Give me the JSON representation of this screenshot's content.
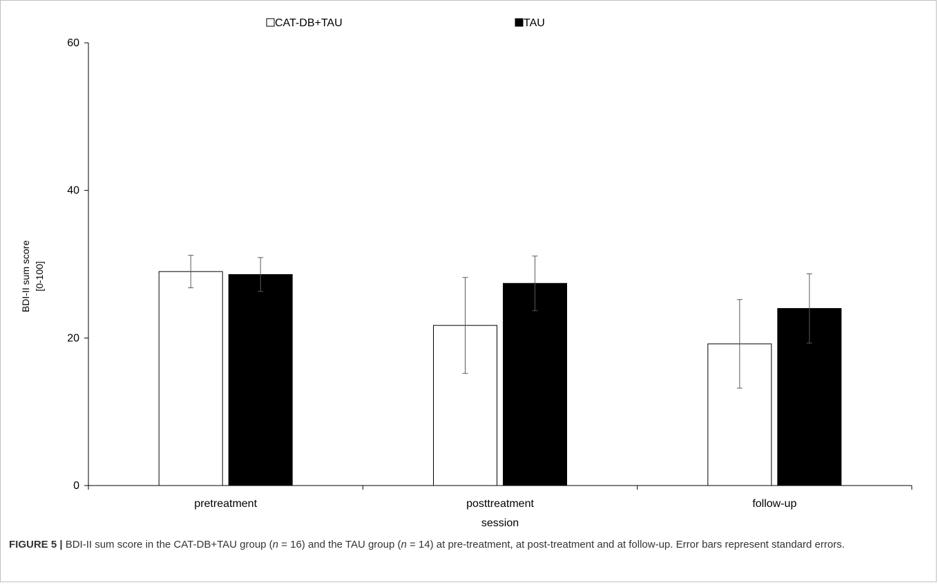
{
  "chart_data": {
    "type": "bar",
    "categories": [
      "pretreatment",
      "posttreatment",
      "follow-up"
    ],
    "series": [
      {
        "name": "CAT-DB+TAU",
        "values": [
          29.0,
          21.7,
          19.2
        ],
        "errors": [
          2.2,
          6.5,
          6.0
        ],
        "color": "#ffffff"
      },
      {
        "name": "TAU",
        "values": [
          28.6,
          27.4,
          24.0
        ],
        "errors": [
          2.3,
          3.7,
          4.7
        ],
        "color": "#000000"
      }
    ],
    "xlabel": "session",
    "ylabel": "BDI-II sum score",
    "ylabel_range": "[0-100]",
    "ylim": [
      0,
      60
    ],
    "yticks": [
      0,
      20,
      40,
      60
    ],
    "legend_position": "top",
    "grid": false
  },
  "caption": {
    "label": "FIGURE 5 |",
    "text_1": " BDI-II sum score in the CAT-DB+TAU group (",
    "n_1": "n",
    "text_2": " = 16) and the TAU group (",
    "n_2": "n",
    "text_3": " = 14) at pre-treatment, at post-treatment and at follow-up. Error bars represent standard errors."
  }
}
